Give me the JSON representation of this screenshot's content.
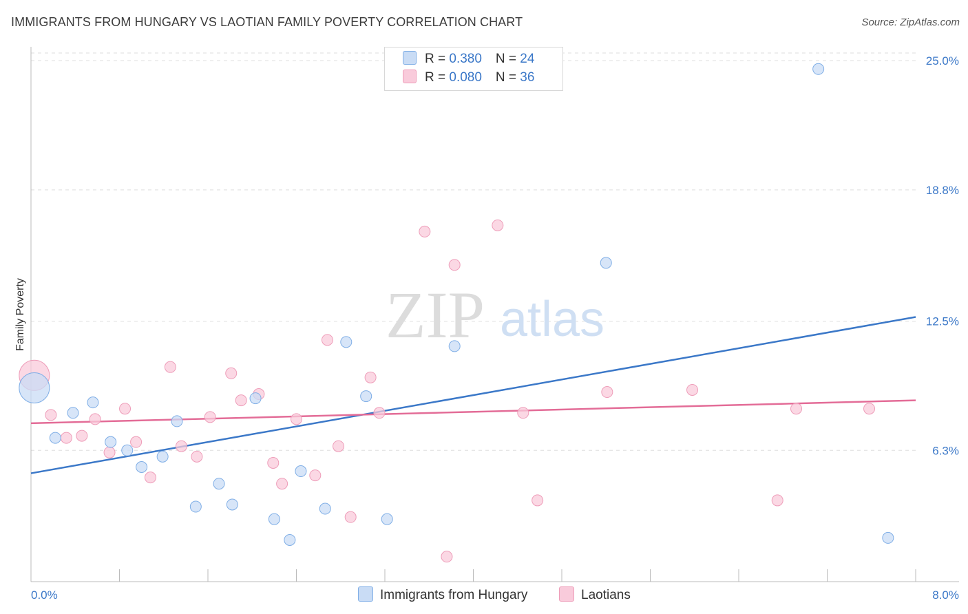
{
  "title": "IMMIGRANTS FROM HUNGARY VS LAOTIAN FAMILY POVERTY CORRELATION CHART",
  "source": "Source: ZipAtlas.com",
  "watermark": {
    "zip": "ZIP",
    "atlas": "atlas"
  },
  "colors": {
    "blue": "#3b78c8",
    "blue_fill": "#c9dcf5",
    "blue_stroke": "#7faee6",
    "pink": "#e36c97",
    "pink_fill": "#f9cbdb",
    "pink_stroke": "#ee9db9",
    "grid": "#dddddd"
  },
  "legend": {
    "rows": [
      {
        "r_label": "R = ",
        "r_value": "0.380",
        "n_label": "N = ",
        "n_value": "24"
      },
      {
        "r_label": "R = ",
        "r_value": "0.080",
        "n_label": "N = ",
        "n_value": "36"
      }
    ]
  },
  "bottom_legend": {
    "series1": "Immigrants from Hungary",
    "series2": "Laotians"
  },
  "chart_data": {
    "type": "scatter",
    "title": "IMMIGRANTS FROM HUNGARY VS LAOTIAN FAMILY POVERTY CORRELATION CHART",
    "xlabel": "",
    "ylabel": "Family Poverty",
    "xlim": [
      0,
      8
    ],
    "ylim": [
      0,
      25.6
    ],
    "x_tick_labels": [
      "0.0%",
      "8.0%"
    ],
    "y_ticks": [
      6.3,
      12.5,
      18.8,
      25.0
    ],
    "y_tick_labels": [
      "6.3%",
      "12.5%",
      "18.8%",
      "25.0%"
    ],
    "grid": true,
    "legend_position": "top-center",
    "series": [
      {
        "name": "Immigrants from Hungary",
        "color": "#3b78c8",
        "R": 0.38,
        "N": 24,
        "trend": {
          "x": [
            0,
            8
          ],
          "y": [
            5.2,
            12.7
          ]
        },
        "points": [
          {
            "x": 0.03,
            "y": 9.3,
            "size": "large"
          },
          {
            "x": 0.22,
            "y": 6.9
          },
          {
            "x": 0.38,
            "y": 8.1
          },
          {
            "x": 0.56,
            "y": 8.6
          },
          {
            "x": 0.72,
            "y": 6.7
          },
          {
            "x": 0.87,
            "y": 6.3
          },
          {
            "x": 1.0,
            "y": 5.5
          },
          {
            "x": 1.19,
            "y": 6.0
          },
          {
            "x": 1.32,
            "y": 7.7
          },
          {
            "x": 1.49,
            "y": 3.6
          },
          {
            "x": 1.7,
            "y": 4.7
          },
          {
            "x": 1.82,
            "y": 3.7
          },
          {
            "x": 2.03,
            "y": 8.8
          },
          {
            "x": 2.2,
            "y": 3.0
          },
          {
            "x": 2.34,
            "y": 2.0
          },
          {
            "x": 2.44,
            "y": 5.3
          },
          {
            "x": 2.66,
            "y": 3.5
          },
          {
            "x": 2.85,
            "y": 11.5
          },
          {
            "x": 3.03,
            "y": 8.9
          },
          {
            "x": 3.22,
            "y": 3.0
          },
          {
            "x": 3.83,
            "y": 11.3
          },
          {
            "x": 5.2,
            "y": 15.3
          },
          {
            "x": 7.12,
            "y": 24.6
          },
          {
            "x": 7.75,
            "y": 2.1
          }
        ]
      },
      {
        "name": "Laotians",
        "color": "#e36c97",
        "R": 0.08,
        "N": 36,
        "trend": {
          "x": [
            0,
            8
          ],
          "y": [
            7.6,
            8.7
          ]
        },
        "points": [
          {
            "x": 0.03,
            "y": 9.9,
            "size": "large"
          },
          {
            "x": 0.18,
            "y": 8.0
          },
          {
            "x": 0.32,
            "y": 6.9
          },
          {
            "x": 0.46,
            "y": 7.0
          },
          {
            "x": 0.58,
            "y": 7.8
          },
          {
            "x": 0.71,
            "y": 6.2
          },
          {
            "x": 0.85,
            "y": 8.3
          },
          {
            "x": 0.95,
            "y": 6.7
          },
          {
            "x": 1.08,
            "y": 5.0
          },
          {
            "x": 1.26,
            "y": 10.3
          },
          {
            "x": 1.36,
            "y": 6.5
          },
          {
            "x": 1.5,
            "y": 6.0
          },
          {
            "x": 1.62,
            "y": 7.9
          },
          {
            "x": 1.81,
            "y": 10.0
          },
          {
            "x": 1.9,
            "y": 8.7
          },
          {
            "x": 2.06,
            "y": 9.0
          },
          {
            "x": 2.19,
            "y": 5.7
          },
          {
            "x": 2.27,
            "y": 4.7
          },
          {
            "x": 2.4,
            "y": 7.8
          },
          {
            "x": 2.57,
            "y": 5.1
          },
          {
            "x": 2.68,
            "y": 11.6
          },
          {
            "x": 2.78,
            "y": 6.5
          },
          {
            "x": 2.89,
            "y": 3.1
          },
          {
            "x": 3.07,
            "y": 9.8
          },
          {
            "x": 3.15,
            "y": 8.1
          },
          {
            "x": 3.56,
            "y": 16.8
          },
          {
            "x": 3.76,
            "y": 1.2
          },
          {
            "x": 3.83,
            "y": 15.2
          },
          {
            "x": 4.22,
            "y": 17.1
          },
          {
            "x": 4.45,
            "y": 8.1
          },
          {
            "x": 4.58,
            "y": 3.9
          },
          {
            "x": 5.21,
            "y": 9.1
          },
          {
            "x": 5.98,
            "y": 9.2
          },
          {
            "x": 6.75,
            "y": 3.9
          },
          {
            "x": 6.92,
            "y": 8.3
          },
          {
            "x": 7.58,
            "y": 8.3
          }
        ]
      }
    ]
  }
}
